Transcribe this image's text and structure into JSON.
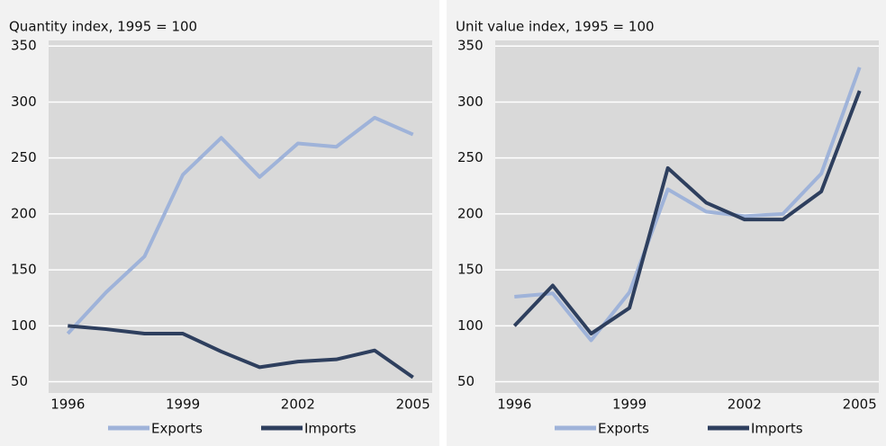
{
  "chart_data": [
    {
      "type": "line",
      "title": "Quantity index, 1995 = 100",
      "x": [
        1996,
        1997,
        1998,
        1999,
        2000,
        2001,
        2002,
        2003,
        2004,
        2005
      ],
      "xlim": [
        1995.5,
        2005.5
      ],
      "xticks": [
        1996,
        1999,
        2002,
        2005
      ],
      "ylim": [
        40,
        355
      ],
      "yticks": [
        50,
        100,
        150,
        200,
        250,
        300,
        350
      ],
      "grid": true,
      "series": [
        {
          "name": "Exports",
          "color": "#9fb3d9",
          "values": [
            93,
            130,
            162,
            235,
            268,
            233,
            263,
            260,
            286,
            271
          ]
        },
        {
          "name": "Imports",
          "color": "#2e3f5e",
          "values": [
            100,
            97,
            93,
            93,
            77,
            63,
            68,
            70,
            78,
            54
          ]
        }
      ]
    },
    {
      "type": "line",
      "title": "Unit value index, 1995 = 100",
      "x": [
        1996,
        1997,
        1998,
        1999,
        2000,
        2001,
        2002,
        2003,
        2004,
        2005
      ],
      "xlim": [
        1995.5,
        2005.5
      ],
      "xticks": [
        1996,
        1999,
        2002,
        2005
      ],
      "ylim": [
        40,
        355
      ],
      "yticks": [
        50,
        100,
        150,
        200,
        250,
        300,
        350
      ],
      "grid": true,
      "series": [
        {
          "name": "Exports",
          "color": "#9fb3d9",
          "values": [
            126,
            129,
            87,
            130,
            222,
            202,
            198,
            200,
            236,
            331
          ]
        },
        {
          "name": "Imports",
          "color": "#2e3f5e",
          "values": [
            100,
            136,
            93,
            116,
            241,
            210,
            195,
            195,
            220,
            310
          ]
        }
      ]
    }
  ]
}
